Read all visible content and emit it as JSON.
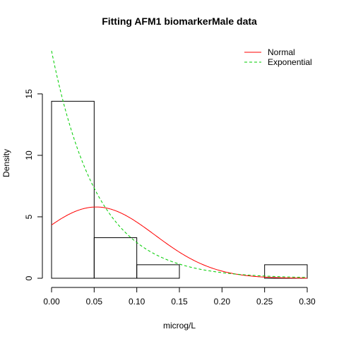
{
  "chart_data": {
    "type": "bar",
    "title": "Fitting AFM1 biomarkerMale data",
    "xlabel": "microg/L",
    "ylabel": "Density",
    "xlim": [
      0.0,
      0.3
    ],
    "ylim": [
      0,
      18.5
    ],
    "xticks": [
      "0.00",
      "0.05",
      "0.10",
      "0.15",
      "0.20",
      "0.25",
      "0.30"
    ],
    "yticks": [
      "0",
      "5",
      "10",
      "15"
    ],
    "histogram": {
      "bins": [
        {
          "from": 0.0,
          "to": 0.05,
          "density": 14.4
        },
        {
          "from": 0.05,
          "to": 0.1,
          "density": 3.3
        },
        {
          "from": 0.1,
          "to": 0.15,
          "density": 1.1
        },
        {
          "from": 0.15,
          "to": 0.2,
          "density": 0
        },
        {
          "from": 0.2,
          "to": 0.25,
          "density": 0
        },
        {
          "from": 0.25,
          "to": 0.3,
          "density": 1.1
        }
      ]
    },
    "series": [
      {
        "name": "Normal",
        "color": "#ff0000",
        "linestyle": "solid",
        "mean": 0.0525,
        "sd": 0.0688
      },
      {
        "name": "Exponential",
        "color": "#00cd00",
        "linestyle": "dashed",
        "rate": 18.5
      }
    ],
    "legend": "top-right",
    "grid": false
  }
}
